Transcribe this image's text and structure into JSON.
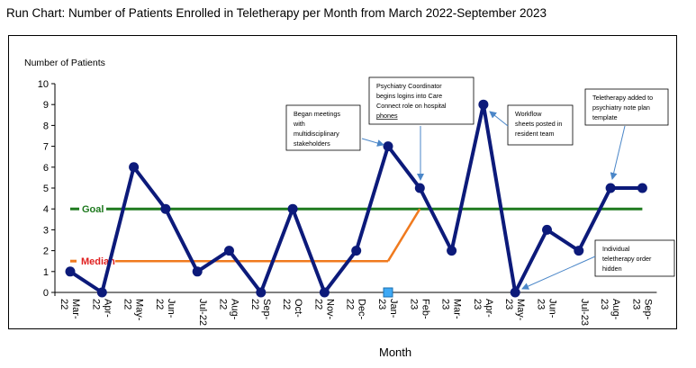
{
  "page": {
    "title": "Run Chart:  Number of Patients Enrolled in Teletherapy per Month from March 2022-September 2023"
  },
  "colors": {
    "series": "#0c1a7a",
    "goal": "#1f7a1f",
    "median": "#f07a1e",
    "goal_label": "#1f7a1f",
    "median_label": "#e02020",
    "marker_highlight": "#3fa9f5"
  },
  "chart_data": {
    "type": "line",
    "ylabel": "Number of Patients",
    "xlabel": "Month",
    "ylim": [
      0,
      10
    ],
    "yticks": [
      0,
      1,
      2,
      3,
      4,
      5,
      6,
      7,
      8,
      9,
      10
    ],
    "grid": false,
    "categories": [
      "Mar-22",
      "Apr-22",
      "May-22",
      "Jun-22",
      "Jul-22",
      "Aug-22",
      "Sep-22",
      "Oct-22",
      "Nov-22",
      "Dec-22",
      "Jan-23",
      "Feb-23",
      "Mar-23",
      "Apr-23",
      "May-23",
      "Jun-23",
      "Jul-23",
      "Aug-23",
      "Sep-23"
    ],
    "tick_labels": [
      [
        "Mar-",
        "22"
      ],
      [
        "Apr-",
        "22"
      ],
      [
        "May-",
        "22"
      ],
      [
        "Jun-",
        "22"
      ],
      [
        "Jul-22"
      ],
      [
        "Aug-",
        "22"
      ],
      [
        "Sep-",
        "22"
      ],
      [
        "Oct-",
        "22"
      ],
      [
        "Nov-",
        "22"
      ],
      [
        "Dec-",
        "22"
      ],
      [
        "Jan-",
        "23"
      ],
      [
        "Feb-",
        "23"
      ],
      [
        "Mar-",
        "23"
      ],
      [
        "Apr-",
        "23"
      ],
      [
        "May-",
        "23"
      ],
      [
        "Jun-",
        "23"
      ],
      [
        "Jul-23"
      ],
      [
        "Aug-",
        "23"
      ],
      [
        "Sep-",
        "23"
      ]
    ],
    "series": [
      {
        "values": [
          1,
          0,
          6,
          4,
          1,
          2,
          0,
          4,
          0,
          2,
          7,
          5,
          2,
          9,
          0,
          3,
          2,
          5,
          5
        ]
      }
    ],
    "goal": {
      "label": "Goal",
      "value": 4
    },
    "median": {
      "label": "Median",
      "segments": [
        {
          "x0": "Mar-22",
          "y0": 1.5,
          "x1": "Jan-23",
          "y1": 1.5
        },
        {
          "x0": "Jan-23",
          "y0": 1.5,
          "x1": "Feb-23",
          "y1": 4
        }
      ]
    },
    "highlighted_point": {
      "x": "Jan-23",
      "y": 0
    },
    "annotations": [
      {
        "lines": [
          "Began meetings",
          "with",
          "multidisciplinary",
          "stakeholders"
        ],
        "target": "Jan-23"
      },
      {
        "lines": [
          "Psychiatry Coordinator",
          "begins logins into Care",
          "Connect role on hospital",
          "phones"
        ],
        "target": "Feb-23"
      },
      {
        "lines": [
          "Workflow",
          "sheets posted in",
          "resident team"
        ],
        "target": "Apr-23"
      },
      {
        "lines": [
          "Teletherapy added to",
          "psychiatry note plan",
          "template"
        ],
        "target": "Aug-23"
      },
      {
        "lines": [
          "Individual",
          "teletherapy order",
          "hidden"
        ],
        "target": "May-23"
      }
    ]
  }
}
